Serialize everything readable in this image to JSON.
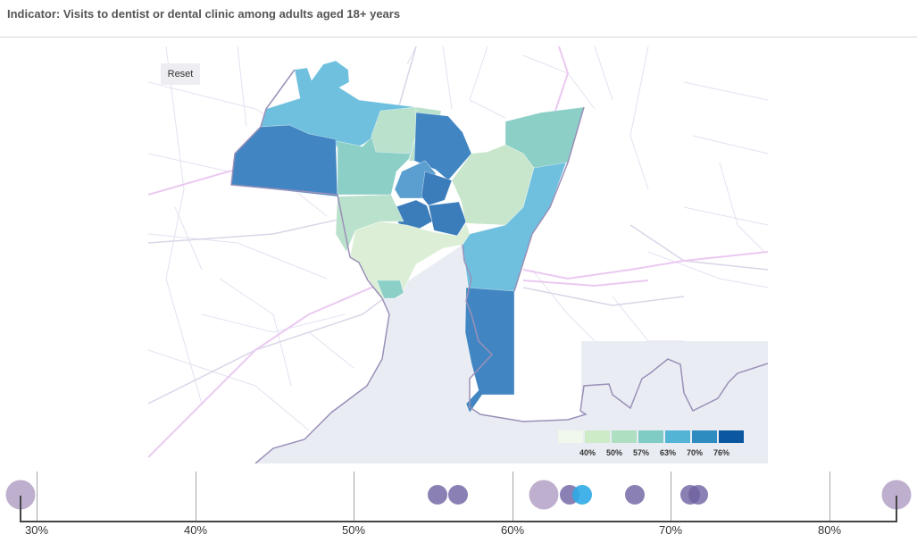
{
  "header": {
    "title": "Indicator: Visits to dentist or dental clinic among adults aged 18+ years"
  },
  "map": {
    "reset_label": "Reset",
    "legend": {
      "colors": [
        "#edf8e9",
        "#c7e9c0",
        "#a1d99b",
        "#7ecec0",
        "#4eb3d3",
        "#2b8cbe",
        "#08589e"
      ],
      "display_colors": [
        "#eff8ea",
        "#cdebc7",
        "#aedfc0",
        "#7fccc4",
        "#54b4d6",
        "#2f8cc0",
        "#0b58a0"
      ],
      "labels": [
        "40%",
        "50%",
        "57%",
        "63%",
        "70%",
        "76%"
      ]
    },
    "colors": {
      "water": "#e9edf3",
      "boundary": "#9a90b8",
      "roads": "#e3e0ef",
      "highway": "#ebc9f2",
      "c1": "#dcefd6",
      "c2": "#b9e1cc",
      "c3": "#8ccfc7",
      "c4": "#6ec0de",
      "c5": "#4186c2"
    }
  },
  "strip": {
    "tick_labels": [
      "30%",
      "40%",
      "50%",
      "60%",
      "70%",
      "80%"
    ],
    "axis": {
      "min_pct": 30,
      "max_pct": 80,
      "x_min": 41,
      "x_max": 929
    },
    "range_min_pct": 29.0,
    "range_max_pct": 84.2,
    "points": [
      {
        "value": 29.0,
        "kind": "range-end"
      },
      {
        "value": 55.3,
        "kind": "tract"
      },
      {
        "value": 56.6,
        "kind": "tract"
      },
      {
        "value": 62.0,
        "kind": "reference"
      },
      {
        "value": 63.6,
        "kind": "tract"
      },
      {
        "value": 64.4,
        "kind": "selected"
      },
      {
        "value": 67.7,
        "kind": "tract"
      },
      {
        "value": 71.2,
        "kind": "tract"
      },
      {
        "value": 71.7,
        "kind": "tract"
      },
      {
        "value": 84.2,
        "kind": "range-end"
      }
    ],
    "colors": {
      "tract": "rgba(110,96,160,0.8)",
      "reference": "rgba(170,148,190,0.75)",
      "range-end": "rgba(170,148,190,0.75)",
      "selected": "rgba(45,170,230,0.9)"
    }
  }
}
